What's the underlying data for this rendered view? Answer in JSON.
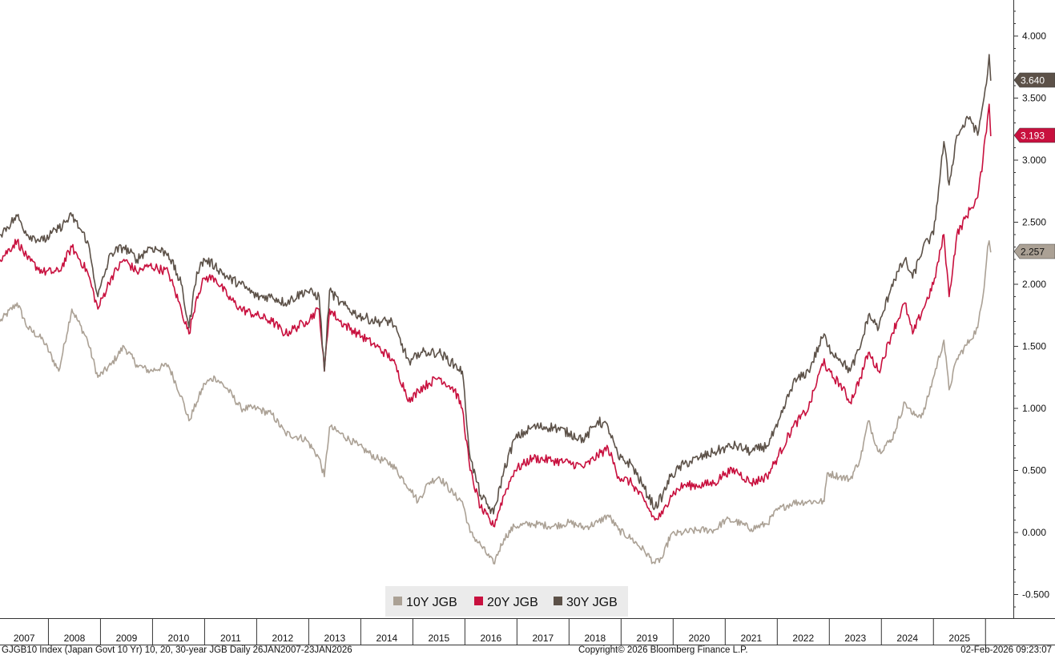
{
  "chart_data": {
    "type": "line",
    "y_axis_side": "right",
    "ylim": [
      -0.7,
      4.3
    ],
    "yticks": [
      "4.000",
      "3.500",
      "3.000",
      "2.500",
      "2.000",
      "1.500",
      "1.000",
      "0.500",
      "0.000",
      "-0.500"
    ],
    "ytick_values": [
      4.0,
      3.5,
      3.0,
      2.5,
      2.0,
      1.5,
      1.0,
      0.5,
      0.0,
      -0.5
    ],
    "x_year_labels": [
      "2007",
      "2008",
      "2009",
      "2010",
      "2011",
      "2012",
      "2013",
      "2014",
      "2015",
      "2016",
      "2017",
      "2018",
      "2019",
      "2020",
      "2021",
      "2022",
      "2023",
      "2024",
      "2025"
    ],
    "xlim": [
      2007.07,
      2026.15
    ],
    "grid": false,
    "legend_position": "bottom-center",
    "series": [
      {
        "name": "10Y JGB",
        "color": "#aba195",
        "last_value_label": "2.257",
        "points": [
          [
            2007.07,
            1.7
          ],
          [
            2007.4,
            1.85
          ],
          [
            2007.6,
            1.65
          ],
          [
            2007.9,
            1.55
          ],
          [
            2008.2,
            1.3
          ],
          [
            2008.45,
            1.8
          ],
          [
            2008.75,
            1.55
          ],
          [
            2008.95,
            1.25
          ],
          [
            2009.2,
            1.35
          ],
          [
            2009.45,
            1.5
          ],
          [
            2009.7,
            1.35
          ],
          [
            2009.95,
            1.3
          ],
          [
            2010.3,
            1.35
          ],
          [
            2010.55,
            1.1
          ],
          [
            2010.7,
            0.9
          ],
          [
            2010.85,
            1.05
          ],
          [
            2011.0,
            1.2
          ],
          [
            2011.2,
            1.25
          ],
          [
            2011.45,
            1.15
          ],
          [
            2011.7,
            1.0
          ],
          [
            2012.0,
            1.0
          ],
          [
            2012.3,
            0.95
          ],
          [
            2012.55,
            0.8
          ],
          [
            2012.95,
            0.75
          ],
          [
            2013.2,
            0.6
          ],
          [
            2013.3,
            0.45
          ],
          [
            2013.4,
            0.85
          ],
          [
            2013.6,
            0.8
          ],
          [
            2013.95,
            0.7
          ],
          [
            2014.3,
            0.6
          ],
          [
            2014.6,
            0.55
          ],
          [
            2014.95,
            0.35
          ],
          [
            2015.1,
            0.25
          ],
          [
            2015.3,
            0.4
          ],
          [
            2015.5,
            0.45
          ],
          [
            2015.8,
            0.3
          ],
          [
            2015.95,
            0.25
          ],
          [
            2016.1,
            0.0
          ],
          [
            2016.3,
            -0.1
          ],
          [
            2016.55,
            -0.25
          ],
          [
            2016.75,
            -0.05
          ],
          [
            2016.95,
            0.05
          ],
          [
            2017.3,
            0.07
          ],
          [
            2017.7,
            0.05
          ],
          [
            2018.0,
            0.08
          ],
          [
            2018.3,
            0.04
          ],
          [
            2018.55,
            0.08
          ],
          [
            2018.75,
            0.14
          ],
          [
            2018.95,
            0.02
          ],
          [
            2019.2,
            -0.05
          ],
          [
            2019.45,
            -0.15
          ],
          [
            2019.65,
            -0.25
          ],
          [
            2019.8,
            -0.2
          ],
          [
            2019.95,
            -0.02
          ],
          [
            2020.2,
            0.0
          ],
          [
            2020.5,
            0.02
          ],
          [
            2020.8,
            0.02
          ],
          [
            2021.0,
            0.1
          ],
          [
            2021.2,
            0.09
          ],
          [
            2021.5,
            0.03
          ],
          [
            2021.8,
            0.07
          ],
          [
            2022.0,
            0.18
          ],
          [
            2022.3,
            0.24
          ],
          [
            2022.6,
            0.25
          ],
          [
            2022.9,
            0.25
          ],
          [
            2022.96,
            0.48
          ],
          [
            2023.2,
            0.45
          ],
          [
            2023.4,
            0.43
          ],
          [
            2023.6,
            0.6
          ],
          [
            2023.75,
            0.9
          ],
          [
            2023.95,
            0.65
          ],
          [
            2024.2,
            0.75
          ],
          [
            2024.45,
            1.05
          ],
          [
            2024.6,
            0.95
          ],
          [
            2024.8,
            0.95
          ],
          [
            2025.0,
            1.25
          ],
          [
            2025.2,
            1.55
          ],
          [
            2025.3,
            1.15
          ],
          [
            2025.45,
            1.4
          ],
          [
            2025.7,
            1.55
          ],
          [
            2025.85,
            1.65
          ],
          [
            2025.95,
            1.9
          ],
          [
            2026.04,
            2.3
          ],
          [
            2026.07,
            2.35
          ],
          [
            2026.1,
            2.257
          ]
        ]
      },
      {
        "name": "20Y JGB",
        "color": "#c8103e",
        "last_value_label": "3.193",
        "points": [
          [
            2007.07,
            2.2
          ],
          [
            2007.4,
            2.35
          ],
          [
            2007.6,
            2.2
          ],
          [
            2007.9,
            2.1
          ],
          [
            2008.2,
            2.1
          ],
          [
            2008.45,
            2.3
          ],
          [
            2008.75,
            2.1
          ],
          [
            2008.95,
            1.8
          ],
          [
            2009.2,
            2.05
          ],
          [
            2009.45,
            2.2
          ],
          [
            2009.7,
            2.1
          ],
          [
            2009.95,
            2.15
          ],
          [
            2010.3,
            2.1
          ],
          [
            2010.55,
            1.8
          ],
          [
            2010.7,
            1.6
          ],
          [
            2010.85,
            1.9
          ],
          [
            2011.0,
            2.05
          ],
          [
            2011.2,
            2.05
          ],
          [
            2011.45,
            1.9
          ],
          [
            2011.7,
            1.8
          ],
          [
            2012.0,
            1.75
          ],
          [
            2012.3,
            1.7
          ],
          [
            2012.55,
            1.6
          ],
          [
            2012.95,
            1.7
          ],
          [
            2013.2,
            1.8
          ],
          [
            2013.3,
            1.3
          ],
          [
            2013.4,
            1.8
          ],
          [
            2013.6,
            1.7
          ],
          [
            2013.95,
            1.6
          ],
          [
            2014.3,
            1.5
          ],
          [
            2014.6,
            1.4
          ],
          [
            2014.95,
            1.05
          ],
          [
            2015.1,
            1.15
          ],
          [
            2015.3,
            1.2
          ],
          [
            2015.5,
            1.25
          ],
          [
            2015.8,
            1.15
          ],
          [
            2015.95,
            1.0
          ],
          [
            2016.1,
            0.5
          ],
          [
            2016.3,
            0.2
          ],
          [
            2016.55,
            0.05
          ],
          [
            2016.75,
            0.3
          ],
          [
            2016.95,
            0.5
          ],
          [
            2017.3,
            0.6
          ],
          [
            2017.7,
            0.58
          ],
          [
            2018.0,
            0.56
          ],
          [
            2018.3,
            0.53
          ],
          [
            2018.55,
            0.62
          ],
          [
            2018.75,
            0.68
          ],
          [
            2018.95,
            0.45
          ],
          [
            2019.2,
            0.4
          ],
          [
            2019.45,
            0.25
          ],
          [
            2019.65,
            0.1
          ],
          [
            2019.8,
            0.15
          ],
          [
            2019.95,
            0.3
          ],
          [
            2020.2,
            0.38
          ],
          [
            2020.5,
            0.38
          ],
          [
            2020.8,
            0.4
          ],
          [
            2021.0,
            0.48
          ],
          [
            2021.2,
            0.5
          ],
          [
            2021.5,
            0.4
          ],
          [
            2021.8,
            0.45
          ],
          [
            2022.0,
            0.6
          ],
          [
            2022.3,
            0.85
          ],
          [
            2022.6,
            1.0
          ],
          [
            2022.9,
            1.4
          ],
          [
            2022.96,
            1.3
          ],
          [
            2023.2,
            1.2
          ],
          [
            2023.4,
            1.05
          ],
          [
            2023.6,
            1.25
          ],
          [
            2023.75,
            1.45
          ],
          [
            2023.95,
            1.3
          ],
          [
            2024.2,
            1.6
          ],
          [
            2024.45,
            1.85
          ],
          [
            2024.6,
            1.6
          ],
          [
            2024.8,
            1.8
          ],
          [
            2025.0,
            2.0
          ],
          [
            2025.2,
            2.4
          ],
          [
            2025.3,
            1.9
          ],
          [
            2025.45,
            2.4
          ],
          [
            2025.7,
            2.6
          ],
          [
            2025.85,
            2.7
          ],
          [
            2025.95,
            3.0
          ],
          [
            2026.04,
            3.35
          ],
          [
            2026.07,
            3.45
          ],
          [
            2026.1,
            3.193
          ]
        ]
      },
      {
        "name": "30Y JGB",
        "color": "#5c5148",
        "last_value_label": "3.640",
        "points": [
          [
            2007.07,
            2.4
          ],
          [
            2007.4,
            2.55
          ],
          [
            2007.6,
            2.4
          ],
          [
            2007.9,
            2.35
          ],
          [
            2008.2,
            2.45
          ],
          [
            2008.45,
            2.55
          ],
          [
            2008.75,
            2.35
          ],
          [
            2008.95,
            1.9
          ],
          [
            2009.2,
            2.25
          ],
          [
            2009.45,
            2.3
          ],
          [
            2009.7,
            2.2
          ],
          [
            2009.95,
            2.3
          ],
          [
            2010.3,
            2.25
          ],
          [
            2010.55,
            2.0
          ],
          [
            2010.7,
            1.65
          ],
          [
            2010.85,
            2.1
          ],
          [
            2011.0,
            2.2
          ],
          [
            2011.2,
            2.15
          ],
          [
            2011.45,
            2.05
          ],
          [
            2011.7,
            2.0
          ],
          [
            2012.0,
            1.9
          ],
          [
            2012.3,
            1.9
          ],
          [
            2012.55,
            1.85
          ],
          [
            2012.95,
            1.95
          ],
          [
            2013.2,
            1.9
          ],
          [
            2013.3,
            1.3
          ],
          [
            2013.4,
            1.95
          ],
          [
            2013.6,
            1.85
          ],
          [
            2013.95,
            1.75
          ],
          [
            2014.3,
            1.7
          ],
          [
            2014.6,
            1.7
          ],
          [
            2014.95,
            1.35
          ],
          [
            2015.1,
            1.45
          ],
          [
            2015.3,
            1.45
          ],
          [
            2015.5,
            1.45
          ],
          [
            2015.8,
            1.35
          ],
          [
            2015.95,
            1.3
          ],
          [
            2016.1,
            0.6
          ],
          [
            2016.3,
            0.3
          ],
          [
            2016.55,
            0.15
          ],
          [
            2016.75,
            0.5
          ],
          [
            2016.95,
            0.75
          ],
          [
            2017.3,
            0.85
          ],
          [
            2017.7,
            0.85
          ],
          [
            2018.0,
            0.8
          ],
          [
            2018.3,
            0.75
          ],
          [
            2018.55,
            0.9
          ],
          [
            2018.75,
            0.85
          ],
          [
            2018.95,
            0.6
          ],
          [
            2019.2,
            0.55
          ],
          [
            2019.45,
            0.35
          ],
          [
            2019.65,
            0.2
          ],
          [
            2019.8,
            0.3
          ],
          [
            2019.95,
            0.45
          ],
          [
            2020.2,
            0.55
          ],
          [
            2020.5,
            0.6
          ],
          [
            2020.8,
            0.65
          ],
          [
            2021.0,
            0.68
          ],
          [
            2021.2,
            0.7
          ],
          [
            2021.5,
            0.65
          ],
          [
            2021.8,
            0.7
          ],
          [
            2022.0,
            0.85
          ],
          [
            2022.3,
            1.2
          ],
          [
            2022.6,
            1.3
          ],
          [
            2022.9,
            1.6
          ],
          [
            2022.96,
            1.5
          ],
          [
            2023.2,
            1.4
          ],
          [
            2023.4,
            1.3
          ],
          [
            2023.6,
            1.5
          ],
          [
            2023.75,
            1.75
          ],
          [
            2023.95,
            1.65
          ],
          [
            2024.2,
            2.0
          ],
          [
            2024.45,
            2.2
          ],
          [
            2024.6,
            2.05
          ],
          [
            2024.8,
            2.3
          ],
          [
            2025.0,
            2.4
          ],
          [
            2025.2,
            3.15
          ],
          [
            2025.3,
            2.8
          ],
          [
            2025.45,
            3.2
          ],
          [
            2025.7,
            3.35
          ],
          [
            2025.85,
            3.2
          ],
          [
            2025.95,
            3.45
          ],
          [
            2026.04,
            3.7
          ],
          [
            2026.07,
            3.85
          ],
          [
            2026.1,
            3.64
          ]
        ]
      }
    ]
  },
  "footer": {
    "left": "GJGB10 Index (Japan Govt 10 Yr) 10, 20, 30-year JGB Daily 26JAN2007-23JAN2026",
    "center": "Copyright© 2026 Bloomberg Finance L.P.",
    "right": "02-Feb-2026 09:23:07"
  }
}
